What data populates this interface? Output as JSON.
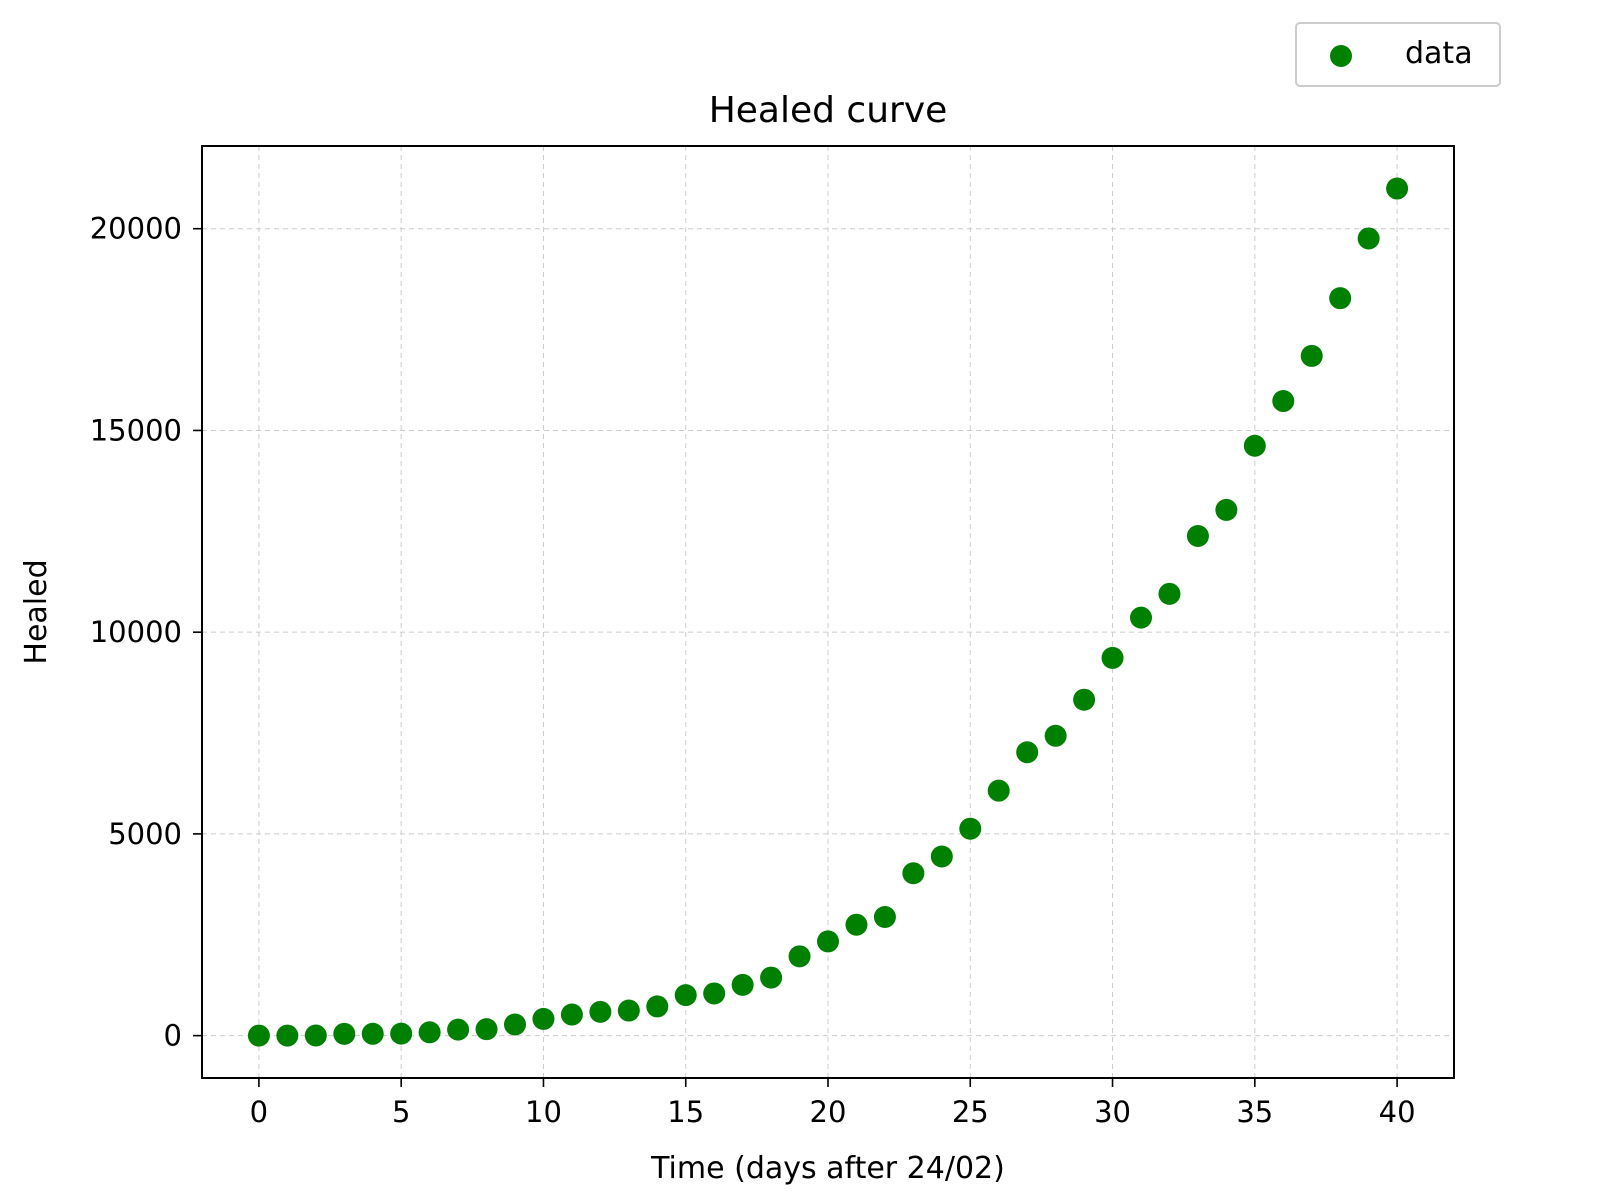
{
  "chart_data": {
    "type": "scatter",
    "title": "Healed curve",
    "xlabel": "Time (days after 24/02)",
    "ylabel": "Healed",
    "xlim": [
      -2,
      42
    ],
    "ylim": [
      -1050,
      22050
    ],
    "xticks": [
      0,
      5,
      10,
      15,
      20,
      25,
      30,
      35,
      40
    ],
    "yticks": [
      0,
      5000,
      10000,
      15000,
      20000
    ],
    "grid": true,
    "legend_position": "upper-right, above plot",
    "series": [
      {
        "name": "data",
        "color": "#008000",
        "marker": "circle",
        "x": [
          0,
          1,
          2,
          3,
          4,
          5,
          6,
          7,
          8,
          9,
          10,
          11,
          12,
          13,
          14,
          15,
          16,
          17,
          18,
          19,
          20,
          21,
          22,
          23,
          24,
          25,
          26,
          27,
          28,
          29,
          30,
          31,
          32,
          33,
          34,
          35,
          36,
          37,
          38,
          39,
          40
        ],
        "y": [
          1,
          1,
          3,
          45,
          46,
          50,
          83,
          149,
          160,
          276,
          414,
          523,
          589,
          622,
          724,
          1004,
          1045,
          1258,
          1439,
          1966,
          2335,
          2749,
          2941,
          4025,
          4440,
          5129,
          6072,
          7024,
          7432,
          8326,
          9362,
          10361,
          10950,
          12384,
          13030,
          14620,
          15729,
          16847,
          18278,
          19758,
          20996
        ]
      }
    ]
  }
}
